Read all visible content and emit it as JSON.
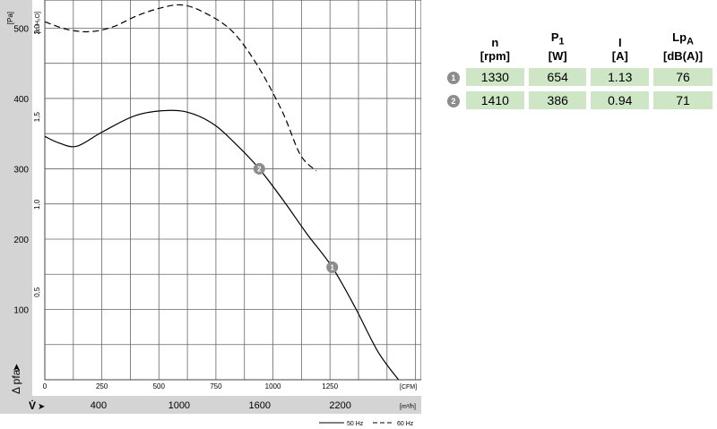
{
  "chart_data": {
    "type": "line",
    "y_axis_pa": {
      "unit": "[Pa]",
      "ticks": [
        100,
        200,
        300,
        400,
        500
      ],
      "range": [
        0,
        540
      ]
    },
    "y_axis_inh2o": {
      "unit": "[in H₂O]",
      "ticks": [
        "0,5",
        "1,0",
        "1,5",
        "2,0"
      ],
      "values": [
        0.5,
        1.0,
        1.5,
        2.0
      ]
    },
    "x_axis_cfm": {
      "unit": "[CFM]",
      "ticks": [
        0,
        250,
        500,
        750,
        1000,
        1250
      ],
      "range": [
        0,
        1650
      ]
    },
    "x_axis_m3h": {
      "unit": "[m³/h]",
      "ticks": [
        "400",
        "1000",
        "1600",
        "2200"
      ],
      "values": [
        400,
        1000,
        1600,
        2200
      ]
    },
    "ylabel": "Δ pfa",
    "xlabel": "V̇",
    "series": [
      {
        "name": "50 Hz",
        "style": "solid",
        "points": [
          [
            0,
            346
          ],
          [
            60,
            337
          ],
          [
            140,
            332
          ],
          [
            250,
            352
          ],
          [
            400,
            376
          ],
          [
            550,
            383
          ],
          [
            650,
            378
          ],
          [
            750,
            361
          ],
          [
            850,
            331
          ],
          [
            940,
            300
          ],
          [
            1050,
            253
          ],
          [
            1150,
            207
          ],
          [
            1260,
            160
          ],
          [
            1360,
            103
          ],
          [
            1460,
            40
          ],
          [
            1550,
            0
          ]
        ]
      },
      {
        "name": "60 Hz",
        "style": "dashed",
        "points": [
          [
            0,
            509
          ],
          [
            100,
            498
          ],
          [
            200,
            495
          ],
          [
            300,
            502
          ],
          [
            400,
            517
          ],
          [
            500,
            528
          ],
          [
            600,
            533
          ],
          [
            700,
            522
          ],
          [
            820,
            496
          ],
          [
            930,
            448
          ],
          [
            1040,
            382
          ],
          [
            1120,
            320
          ],
          [
            1190,
            297
          ]
        ]
      }
    ],
    "operating_points": [
      {
        "label": "1",
        "x": 1260,
        "y": 160,
        "series": "50 Hz"
      },
      {
        "label": "2",
        "x": 940,
        "y": 300,
        "series": "50 Hz"
      }
    ],
    "legend": {
      "placement": "bottom-right",
      "entries": [
        "50 Hz",
        "60 Hz"
      ]
    },
    "grid": true
  },
  "table": {
    "headers": [
      {
        "main": "n",
        "sub": "",
        "unit": "[rpm]"
      },
      {
        "main": "P",
        "sub": "1",
        "unit": "[W]"
      },
      {
        "main": "I",
        "sub": "",
        "unit": "[A]"
      },
      {
        "main": "Lp",
        "sub": "A",
        "unit": "[dB(A)]"
      }
    ],
    "rows": [
      {
        "badge": "1",
        "cells": [
          "1330",
          "654",
          "1.13",
          "76"
        ]
      },
      {
        "badge": "2",
        "cells": [
          "1410",
          "386",
          "0.94",
          "71"
        ]
      }
    ]
  },
  "colors": {
    "left_panel": "#d4d4d4",
    "bottom_panel": "#d4d4d4",
    "grid": "#666666",
    "badge": "#8c8c8c",
    "cell": "#cfe6c6"
  }
}
